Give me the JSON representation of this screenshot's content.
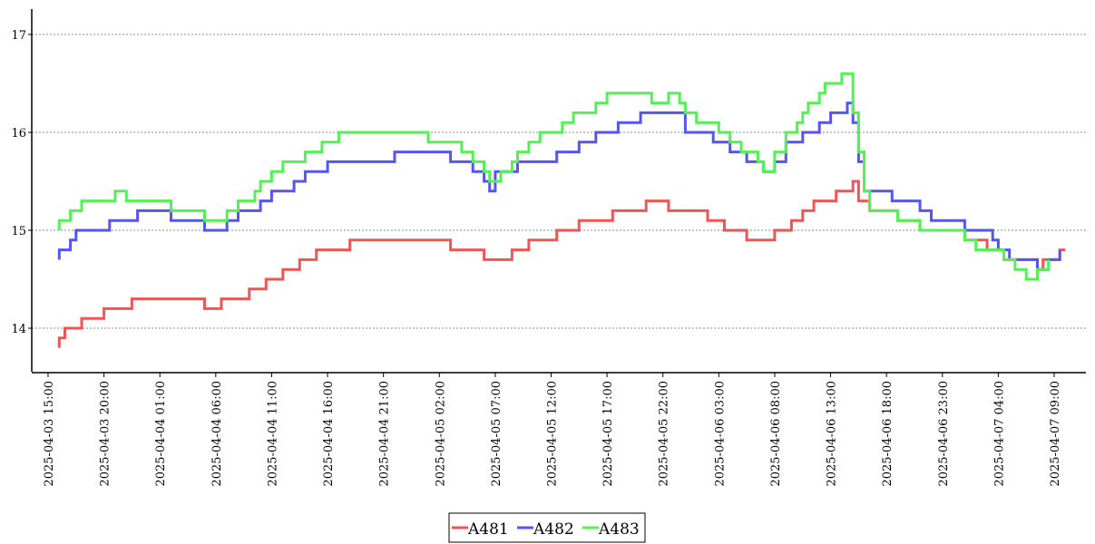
{
  "chart_data": {
    "type": "line",
    "title": "",
    "xlabel": "",
    "ylabel": "",
    "x_axis": "datetime",
    "ylim": [
      13.53,
      17.27
    ],
    "y_ticks": [
      14,
      15,
      16,
      17
    ],
    "grid": "horizontal dotted",
    "legend_position": "bottom-center",
    "x_ticks": [
      "2025-04-03 15:00",
      "2025-04-03 20:00",
      "2025-04-04 01:00",
      "2025-04-04 06:00",
      "2025-04-04 11:00",
      "2025-04-04 16:00",
      "2025-04-04 21:00",
      "2025-04-05 02:00",
      "2025-04-05 07:00",
      "2025-04-05 12:00",
      "2025-04-05 17:00",
      "2025-04-05 22:00",
      "2025-04-06 03:00",
      "2025-04-06 08:00",
      "2025-04-06 13:00",
      "2025-04-06 18:00",
      "2025-04-06 23:00",
      "2025-04-07 04:00",
      "2025-04-07 09:00"
    ],
    "series": [
      {
        "name": "A481",
        "color": "#f05555",
        "points": [
          [
            "2025-04-03 16:00",
            13.8
          ],
          [
            "2025-04-03 16:00",
            13.9
          ],
          [
            "2025-04-03 16:30",
            14.0
          ],
          [
            "2025-04-03 18:00",
            14.1
          ],
          [
            "2025-04-03 20:00",
            14.2
          ],
          [
            "2025-04-03 22:30",
            14.3
          ],
          [
            "2025-04-04 05:00",
            14.2
          ],
          [
            "2025-04-04 06:30",
            14.3
          ],
          [
            "2025-04-04 09:00",
            14.4
          ],
          [
            "2025-04-04 10:30",
            14.5
          ],
          [
            "2025-04-04 12:00",
            14.6
          ],
          [
            "2025-04-04 13:30",
            14.7
          ],
          [
            "2025-04-04 15:00",
            14.8
          ],
          [
            "2025-04-04 18:00",
            14.9
          ],
          [
            "2025-04-05 03:00",
            14.8
          ],
          [
            "2025-04-05 06:00",
            14.7
          ],
          [
            "2025-04-05 08:30",
            14.8
          ],
          [
            "2025-04-05 10:00",
            14.9
          ],
          [
            "2025-04-05 12:30",
            15.0
          ],
          [
            "2025-04-05 14:30",
            15.1
          ],
          [
            "2025-04-05 17:30",
            15.2
          ],
          [
            "2025-04-05 20:30",
            15.3
          ],
          [
            "2025-04-05 22:30",
            15.2
          ],
          [
            "2025-04-06 02:00",
            15.1
          ],
          [
            "2025-04-06 03:30",
            15.0
          ],
          [
            "2025-04-06 05:30",
            14.9
          ],
          [
            "2025-04-06 08:00",
            15.0
          ],
          [
            "2025-04-06 09:30",
            15.1
          ],
          [
            "2025-04-06 10:30",
            15.2
          ],
          [
            "2025-04-06 11:30",
            15.3
          ],
          [
            "2025-04-06 13:30",
            15.4
          ],
          [
            "2025-04-06 15:00",
            15.5
          ],
          [
            "2025-04-06 15:30",
            15.3
          ],
          [
            "2025-04-06 16:30",
            15.2
          ],
          [
            "2025-04-06 19:00",
            15.1
          ],
          [
            "2025-04-06 21:00",
            15.0
          ],
          [
            "2025-04-07 01:00",
            14.9
          ],
          [
            "2025-04-07 03:00",
            14.8
          ],
          [
            "2025-04-07 04:30",
            14.7
          ],
          [
            "2025-04-07 07:30",
            14.6
          ],
          [
            "2025-04-07 08:00",
            14.7
          ],
          [
            "2025-04-07 09:30",
            14.8
          ],
          [
            "2025-04-07 10:00",
            14.8
          ]
        ]
      },
      {
        "name": "A482",
        "color": "#5555f0",
        "points": [
          [
            "2025-04-03 16:00",
            14.7
          ],
          [
            "2025-04-03 16:00",
            14.8
          ],
          [
            "2025-04-03 17:00",
            14.9
          ],
          [
            "2025-04-03 17:30",
            15.0
          ],
          [
            "2025-04-03 19:00",
            15.0
          ],
          [
            "2025-04-03 20:30",
            15.1
          ],
          [
            "2025-04-03 23:00",
            15.2
          ],
          [
            "2025-04-04 02:00",
            15.1
          ],
          [
            "2025-04-04 04:30",
            15.1
          ],
          [
            "2025-04-04 05:00",
            15.0
          ],
          [
            "2025-04-04 07:00",
            15.1
          ],
          [
            "2025-04-04 08:00",
            15.2
          ],
          [
            "2025-04-04 10:00",
            15.3
          ],
          [
            "2025-04-04 11:00",
            15.4
          ],
          [
            "2025-04-04 13:00",
            15.5
          ],
          [
            "2025-04-04 14:00",
            15.6
          ],
          [
            "2025-04-04 16:00",
            15.7
          ],
          [
            "2025-04-04 19:00",
            15.7
          ],
          [
            "2025-04-04 22:00",
            15.8
          ],
          [
            "2025-04-05 03:00",
            15.7
          ],
          [
            "2025-04-05 05:00",
            15.6
          ],
          [
            "2025-04-05 06:00",
            15.5
          ],
          [
            "2025-04-05 06:30",
            15.4
          ],
          [
            "2025-04-05 07:00",
            15.6
          ],
          [
            "2025-04-05 09:00",
            15.7
          ],
          [
            "2025-04-05 12:30",
            15.8
          ],
          [
            "2025-04-05 14:30",
            15.9
          ],
          [
            "2025-04-05 16:00",
            16.0
          ],
          [
            "2025-04-05 18:00",
            16.1
          ],
          [
            "2025-04-05 20:00",
            16.2
          ],
          [
            "2025-04-06 00:00",
            16.0
          ],
          [
            "2025-04-06 02:30",
            15.9
          ],
          [
            "2025-04-06 04:00",
            15.8
          ],
          [
            "2025-04-06 05:30",
            15.7
          ],
          [
            "2025-04-06 07:00",
            15.6
          ],
          [
            "2025-04-06 08:00",
            15.7
          ],
          [
            "2025-04-06 09:00",
            15.9
          ],
          [
            "2025-04-06 10:30",
            16.0
          ],
          [
            "2025-04-06 12:00",
            16.1
          ],
          [
            "2025-04-06 13:00",
            16.2
          ],
          [
            "2025-04-06 14:30",
            16.3
          ],
          [
            "2025-04-06 15:00",
            16.1
          ],
          [
            "2025-04-06 15:30",
            15.7
          ],
          [
            "2025-04-06 16:00",
            15.4
          ],
          [
            "2025-04-06 18:30",
            15.3
          ],
          [
            "2025-04-06 21:00",
            15.2
          ],
          [
            "2025-04-06 22:00",
            15.1
          ],
          [
            "2025-04-07 01:00",
            15.0
          ],
          [
            "2025-04-07 03:30",
            14.9
          ],
          [
            "2025-04-07 04:00",
            14.8
          ],
          [
            "2025-04-07 05:00",
            14.7
          ],
          [
            "2025-04-07 07:30",
            14.6
          ],
          [
            "2025-04-07 08:30",
            14.7
          ],
          [
            "2025-04-07 09:30",
            14.8
          ]
        ]
      },
      {
        "name": "A483",
        "color": "#55f055",
        "points": [
          [
            "2025-04-03 16:00",
            15.0
          ],
          [
            "2025-04-03 16:00",
            15.1
          ],
          [
            "2025-04-03 17:00",
            15.2
          ],
          [
            "2025-04-03 18:00",
            15.3
          ],
          [
            "2025-04-03 21:00",
            15.4
          ],
          [
            "2025-04-03 22:00",
            15.3
          ],
          [
            "2025-04-04 02:00",
            15.2
          ],
          [
            "2025-04-04 04:00",
            15.2
          ],
          [
            "2025-04-04 05:00",
            15.1
          ],
          [
            "2025-04-04 07:00",
            15.2
          ],
          [
            "2025-04-04 08:00",
            15.3
          ],
          [
            "2025-04-04 09:30",
            15.4
          ],
          [
            "2025-04-04 10:00",
            15.5
          ],
          [
            "2025-04-04 11:00",
            15.6
          ],
          [
            "2025-04-04 12:00",
            15.7
          ],
          [
            "2025-04-04 14:00",
            15.8
          ],
          [
            "2025-04-04 15:30",
            15.9
          ],
          [
            "2025-04-04 17:00",
            16.0
          ],
          [
            "2025-04-05 01:00",
            15.9
          ],
          [
            "2025-04-05 04:00",
            15.8
          ],
          [
            "2025-04-05 05:00",
            15.7
          ],
          [
            "2025-04-05 06:00",
            15.6
          ],
          [
            "2025-04-05 06:30",
            15.5
          ],
          [
            "2025-04-05 07:30",
            15.6
          ],
          [
            "2025-04-05 08:30",
            15.7
          ],
          [
            "2025-04-05 09:00",
            15.8
          ],
          [
            "2025-04-05 10:00",
            15.9
          ],
          [
            "2025-04-05 11:00",
            16.0
          ],
          [
            "2025-04-05 13:00",
            16.1
          ],
          [
            "2025-04-05 14:00",
            16.2
          ],
          [
            "2025-04-05 16:00",
            16.3
          ],
          [
            "2025-04-05 17:00",
            16.4
          ],
          [
            "2025-04-05 21:00",
            16.3
          ],
          [
            "2025-04-05 22:30",
            16.4
          ],
          [
            "2025-04-05 23:30",
            16.3
          ],
          [
            "2025-04-06 00:00",
            16.2
          ],
          [
            "2025-04-06 01:00",
            16.1
          ],
          [
            "2025-04-06 03:00",
            16.0
          ],
          [
            "2025-04-06 04:00",
            15.9
          ],
          [
            "2025-04-06 05:00",
            15.8
          ],
          [
            "2025-04-06 06:30",
            15.7
          ],
          [
            "2025-04-06 07:00",
            15.6
          ],
          [
            "2025-04-06 08:00",
            15.8
          ],
          [
            "2025-04-06 09:00",
            16.0
          ],
          [
            "2025-04-06 10:00",
            16.1
          ],
          [
            "2025-04-06 10:30",
            16.2
          ],
          [
            "2025-04-06 11:00",
            16.3
          ],
          [
            "2025-04-06 12:00",
            16.4
          ],
          [
            "2025-04-06 12:30",
            16.5
          ],
          [
            "2025-04-06 14:00",
            16.6
          ],
          [
            "2025-04-06 14:45",
            16.6
          ],
          [
            "2025-04-06 15:00",
            16.2
          ],
          [
            "2025-04-06 15:30",
            15.8
          ],
          [
            "2025-04-06 16:00",
            15.4
          ],
          [
            "2025-04-06 16:30",
            15.2
          ],
          [
            "2025-04-06 19:00",
            15.1
          ],
          [
            "2025-04-06 21:00",
            15.0
          ],
          [
            "2025-04-06 22:00",
            15.0
          ],
          [
            "2025-04-07 01:00",
            14.9
          ],
          [
            "2025-04-07 02:00",
            14.8
          ],
          [
            "2025-04-07 04:30",
            14.7
          ],
          [
            "2025-04-07 05:30",
            14.6
          ],
          [
            "2025-04-07 06:30",
            14.5
          ],
          [
            "2025-04-07 07:30",
            14.6
          ],
          [
            "2025-04-07 08:30",
            14.7
          ]
        ]
      }
    ]
  }
}
